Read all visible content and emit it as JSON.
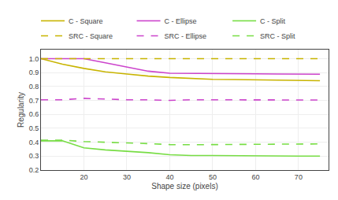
{
  "chart_data": {
    "type": "line",
    "x_label": "Shape size (pixels)",
    "y_label": "Regularity",
    "x": [
      10,
      15,
      20,
      25,
      30,
      35,
      40,
      45,
      50,
      55,
      60,
      65,
      70,
      75
    ],
    "series": [
      {
        "name": "C - Square",
        "color": "#c8b400",
        "line_style": "solid",
        "values": [
          1.0,
          0.96,
          0.93,
          0.905,
          0.89,
          0.875,
          0.865,
          0.857,
          0.852,
          0.85,
          0.848,
          0.845,
          0.843,
          0.842
        ]
      },
      {
        "name": "C - Ellipse",
        "color": "#cc44cc",
        "line_style": "solid",
        "values": [
          1.0,
          1.0,
          1.0,
          0.97,
          0.94,
          0.91,
          0.895,
          0.893,
          0.893,
          0.892,
          0.891,
          0.89,
          0.889,
          0.888
        ]
      },
      {
        "name": "C - Split",
        "color": "#77dd44",
        "line_style": "solid",
        "values": [
          0.41,
          0.41,
          0.36,
          0.345,
          0.335,
          0.325,
          0.31,
          0.305,
          0.305,
          0.303,
          0.302,
          0.301,
          0.3,
          0.3
        ]
      },
      {
        "name": "SRC - Square",
        "color": "#c8b400",
        "line_style": "dashed",
        "values": [
          1.0,
          1.0,
          1.0,
          1.0,
          1.0,
          1.0,
          1.0,
          1.0,
          1.0,
          1.0,
          1.0,
          1.0,
          1.0,
          1.0
        ]
      },
      {
        "name": "SRC - Ellipse",
        "color": "#cc44cc",
        "line_style": "dashed",
        "values": [
          0.705,
          0.705,
          0.715,
          0.71,
          0.705,
          0.705,
          0.7,
          0.705,
          0.705,
          0.705,
          0.703,
          0.703,
          0.703,
          0.703
        ]
      },
      {
        "name": "SRC - Split",
        "color": "#77dd44",
        "line_style": "dashed",
        "values": [
          0.415,
          0.415,
          0.405,
          0.398,
          0.395,
          0.39,
          0.383,
          0.382,
          0.383,
          0.385,
          0.385,
          0.386,
          0.387,
          0.388
        ]
      }
    ],
    "xlim": [
      10,
      77
    ],
    "ylim": [
      0.2,
      1.065
    ],
    "xticks": [
      20,
      30,
      40,
      50,
      60,
      70
    ],
    "yticks": [
      0.2,
      0.3,
      0.4,
      0.5,
      0.6,
      0.7,
      0.8,
      0.9,
      {
        "value": 1.0,
        "label": "1.0"
      }
    ],
    "grid": true,
    "legend": "upper right"
  }
}
